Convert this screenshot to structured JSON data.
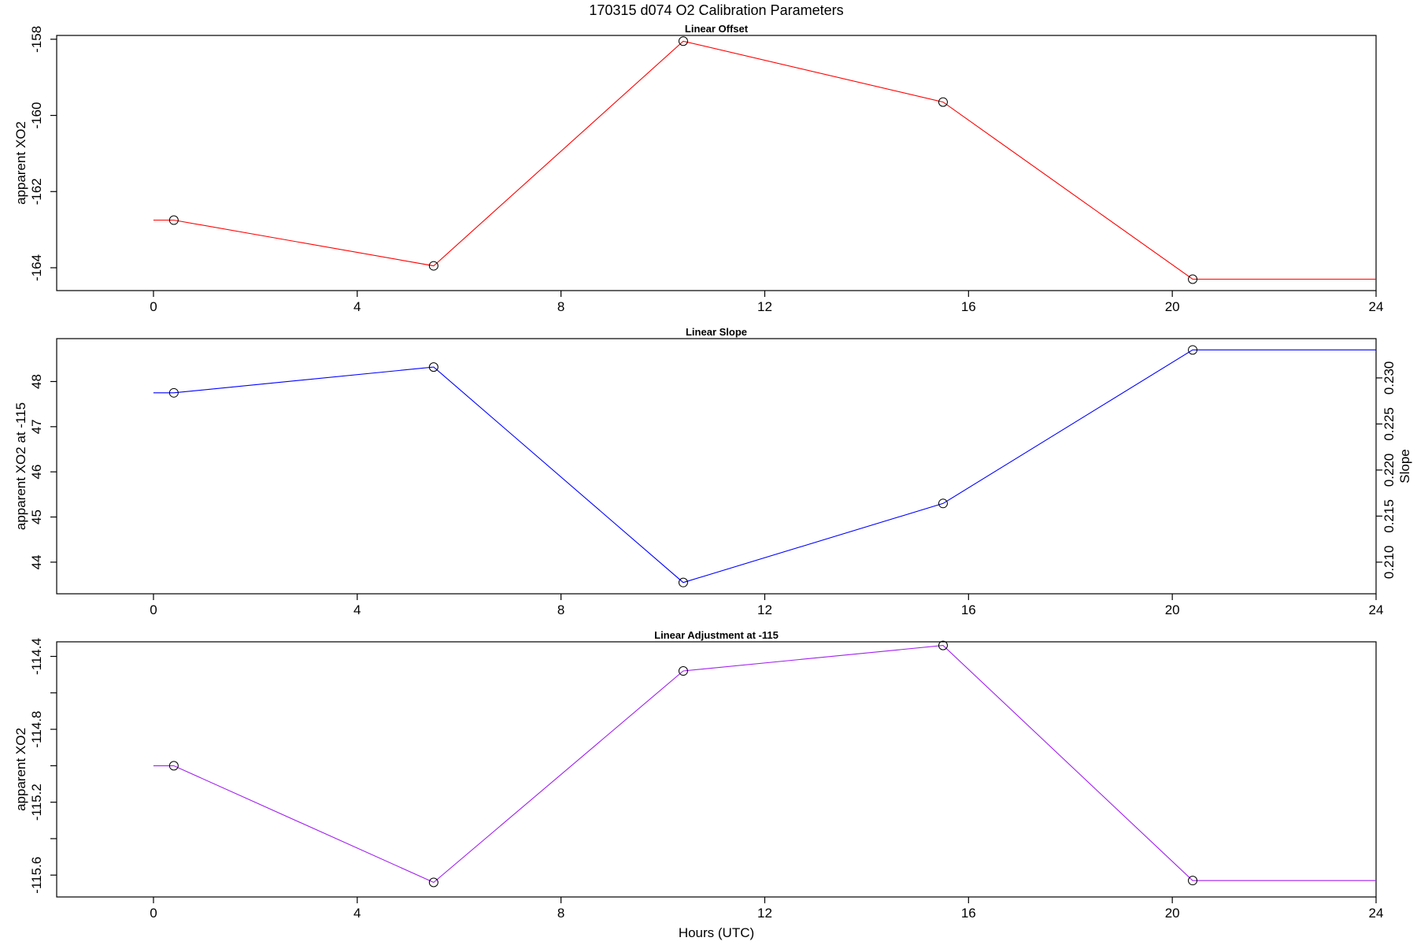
{
  "title": "170315   d074   O2 Calibration Parameters",
  "xlabel": "Hours (UTC)",
  "chart_data": [
    {
      "type": "line",
      "title": "Linear Offset",
      "xlabel": "",
      "ylabel": "apparent XO2",
      "color": "#ff0000",
      "xlim": [
        -1.9,
        24.0
      ],
      "ylim": [
        -164.6,
        -157.9
      ],
      "xticks": [
        0,
        4,
        8,
        12,
        16,
        20,
        24
      ],
      "yticks": [
        -164,
        -162,
        -160,
        -158
      ],
      "x": [
        0.0,
        0.4,
        5.5,
        10.4,
        15.5,
        20.4,
        24.0
      ],
      "y": [
        -162.75,
        -162.75,
        -163.95,
        -158.05,
        -159.65,
        -164.3,
        -164.3
      ],
      "markers_x": [
        0.4,
        5.5,
        10.4,
        15.5,
        20.4
      ],
      "markers_y": [
        -162.75,
        -163.95,
        -158.05,
        -159.65,
        -164.3
      ]
    },
    {
      "type": "line",
      "title": "Linear Slope",
      "xlabel": "",
      "ylabel": "apparent XO2 at -115",
      "y2label": "Slope",
      "color": "#0000ff",
      "xlim": [
        -1.9,
        24.0
      ],
      "ylim": [
        43.3,
        48.95
      ],
      "xticks": [
        0,
        4,
        8,
        12,
        16,
        20,
        24
      ],
      "yticks": [
        44,
        45,
        46,
        47,
        48
      ],
      "y2ticks": [
        "0.210",
        "0.215",
        "0.220",
        "0.225",
        "0.230"
      ],
      "y2tick_positions": [
        44.0,
        45.02,
        46.04,
        47.06,
        48.08
      ],
      "x": [
        0.0,
        0.4,
        5.5,
        10.4,
        15.5,
        20.4,
        24.0
      ],
      "y": [
        47.75,
        47.75,
        48.32,
        43.55,
        45.3,
        48.7,
        48.7
      ],
      "markers_x": [
        0.4,
        5.5,
        10.4,
        15.5,
        20.4
      ],
      "markers_y": [
        47.75,
        48.32,
        43.55,
        45.3,
        48.7
      ]
    },
    {
      "type": "line",
      "title": "Linear Adjustment at -115",
      "xlabel": "",
      "ylabel": "apparent XO2",
      "color": "#a020f0",
      "xlim": [
        -1.9,
        24.0
      ],
      "ylim": [
        -115.72,
        -114.32
      ],
      "xticks": [
        0,
        4,
        8,
        12,
        16,
        20,
        24
      ],
      "yticks": [
        -115.6,
        -115.2,
        -114.8,
        -114.4
      ],
      "ytick_labels": [
        "-115.6",
        "-115.2",
        "-114.8",
        "-114.4"
      ],
      "minor_yticks": [
        -115.4,
        -115.0,
        -114.6
      ],
      "x": [
        0.0,
        0.4,
        5.5,
        10.4,
        15.5,
        20.4,
        24.0
      ],
      "y": [
        -115.0,
        -115.0,
        -115.64,
        -114.48,
        -114.34,
        -115.63,
        -115.63
      ],
      "markers_x": [
        0.4,
        5.5,
        10.4,
        15.5,
        20.4
      ],
      "markers_y": [
        -115.0,
        -115.64,
        -114.48,
        -114.34,
        -115.63
      ]
    }
  ]
}
